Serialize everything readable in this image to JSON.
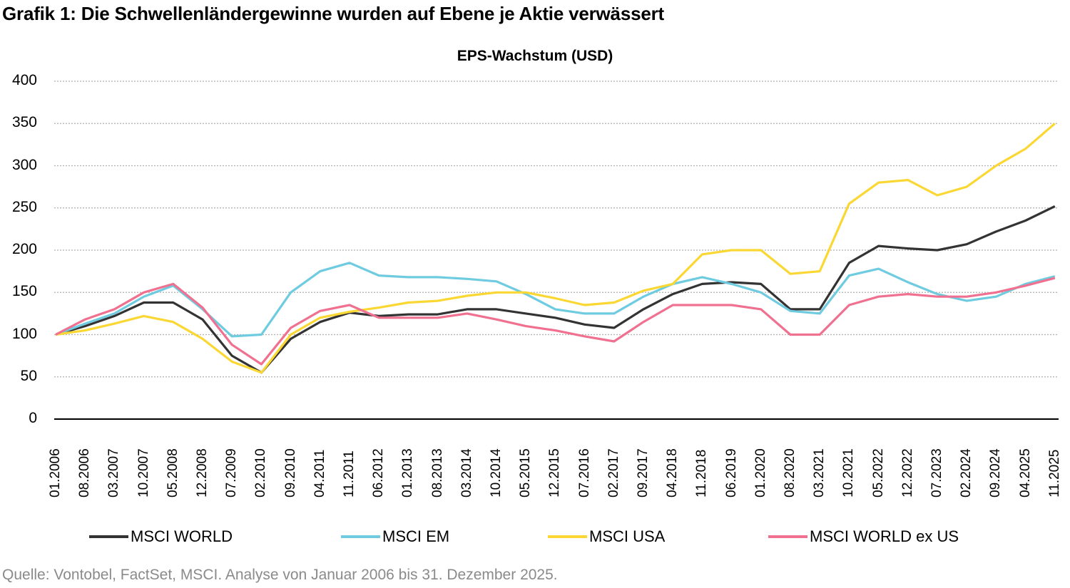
{
  "title": "Grafik 1: Die Schwellenländergewinne wurden auf Ebene je Aktie verwässert",
  "source": "Quelle: Vontobel, FactSet, MSCI. Analyse von Januar 2006 bis 31. Dezember 2025.",
  "chart_data": {
    "type": "line",
    "title": "EPS-Wachstum (USD)",
    "xlabel": "",
    "ylabel": "",
    "ylim": [
      0,
      400
    ],
    "yticks": [
      0,
      50,
      100,
      150,
      200,
      250,
      300,
      350,
      400
    ],
    "grid": "horizontal dotted",
    "legend_position": "bottom",
    "categories": [
      "01.2006",
      "08.2006",
      "03.2007",
      "10.2007",
      "05.2008",
      "12.2008",
      "07.2009",
      "02.2010",
      "09.2010",
      "04.2011",
      "11.2011",
      "06.2012",
      "01.2013",
      "08.2013",
      "03.2014",
      "10.2014",
      "05.2015",
      "12.2015",
      "07.2016",
      "02.2017",
      "09.2017",
      "04.2018",
      "11.2018",
      "06.2019",
      "01.2020",
      "08.2020",
      "03.2021",
      "10.2021",
      "05.2022",
      "12.2022",
      "07.2023",
      "02.2024",
      "09.2024",
      "04.2025",
      "11.2025"
    ],
    "series": [
      {
        "name": "MSCI WORLD",
        "color": "#333333",
        "values": [
          100,
          110,
          122,
          138,
          138,
          118,
          75,
          55,
          95,
          115,
          126,
          122,
          124,
          124,
          130,
          130,
          125,
          120,
          112,
          108,
          130,
          148,
          160,
          162,
          160,
          130,
          130,
          185,
          205,
          202,
          200,
          207,
          222,
          235,
          252
        ]
      },
      {
        "name": "MSCI EM",
        "color": "#6ECBE0",
        "values": [
          100,
          113,
          125,
          145,
          158,
          130,
          98,
          100,
          150,
          175,
          185,
          170,
          168,
          168,
          166,
          163,
          148,
          130,
          125,
          125,
          145,
          160,
          168,
          160,
          150,
          128,
          125,
          170,
          178,
          162,
          148,
          140,
          145,
          160,
          169
        ]
      },
      {
        "name": "MSCI USA",
        "color": "#FAD733",
        "values": [
          100,
          105,
          113,
          122,
          115,
          95,
          68,
          55,
          100,
          120,
          127,
          132,
          138,
          140,
          146,
          150,
          150,
          143,
          135,
          138,
          152,
          160,
          195,
          200,
          200,
          172,
          175,
          255,
          280,
          283,
          265,
          275,
          300,
          320,
          350
        ]
      },
      {
        "name": "MSCI WORLD ex US",
        "color": "#F07090",
        "values": [
          100,
          118,
          130,
          150,
          160,
          132,
          88,
          65,
          108,
          128,
          135,
          120,
          120,
          120,
          125,
          118,
          110,
          105,
          98,
          92,
          115,
          135,
          135,
          135,
          130,
          100,
          100,
          135,
          145,
          148,
          145,
          145,
          150,
          158,
          167
        ]
      }
    ]
  }
}
